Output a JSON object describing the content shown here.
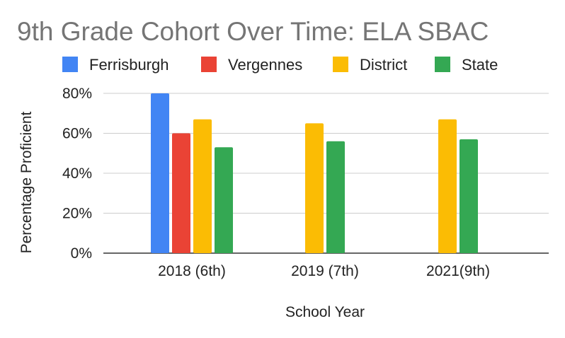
{
  "chart_data": {
    "type": "bar",
    "title": "9th Grade Cohort Over Time: ELA SBAC",
    "xlabel": "School Year",
    "ylabel": "Percentage Proficient",
    "categories": [
      "2018 (6th)",
      "2019 (7th)",
      "2021(9th)"
    ],
    "series": [
      {
        "name": "Ferrisburgh",
        "color": "#4285f4",
        "values": [
          0.8,
          null,
          null
        ]
      },
      {
        "name": "Vergennes",
        "color": "#ea4335",
        "values": [
          0.6,
          null,
          null
        ]
      },
      {
        "name": "District",
        "color": "#fbbc04",
        "values": [
          0.67,
          0.65,
          0.67
        ]
      },
      {
        "name": "State",
        "color": "#34a853",
        "values": [
          0.53,
          0.56,
          0.57
        ]
      }
    ],
    "ylim": [
      0,
      0.8
    ],
    "yticks": [
      "0%",
      "20%",
      "40%",
      "60%",
      "80%"
    ],
    "grid": true,
    "legend": "top"
  }
}
